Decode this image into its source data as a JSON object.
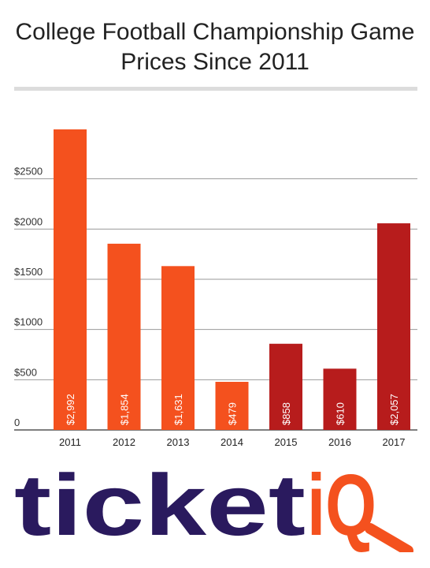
{
  "chart_data": {
    "type": "bar",
    "title_lines": [
      "College Football Championship Game",
      "Prices Since 2011"
    ],
    "categories": [
      "2011",
      "2012",
      "2013",
      "2014",
      "2015",
      "2016",
      "2017"
    ],
    "values": [
      2992,
      1854,
      1631,
      479,
      858,
      610,
      2057
    ],
    "data_labels": [
      "$2,992",
      "$1,854",
      "$1,631",
      "$479",
      "$858",
      "$610",
      "$2,057"
    ],
    "bar_colors": [
      "#f4511e",
      "#f4511e",
      "#f4511e",
      "#f4511e",
      "#b71c1c",
      "#b71c1c",
      "#b71c1c"
    ],
    "ylim": [
      0,
      3000
    ],
    "yticks": [
      0,
      500,
      1000,
      1500,
      2000,
      2500
    ],
    "ytick_labels": [
      "0",
      "$500",
      "$1000",
      "$1500",
      "$2000",
      "$2500"
    ],
    "grid": true,
    "xlabel": "",
    "ylabel": ""
  },
  "logo": {
    "text_main": "ticket",
    "text_accent": "iQ",
    "main_color": "#2a1a5e",
    "accent_color": "#f4511e"
  }
}
